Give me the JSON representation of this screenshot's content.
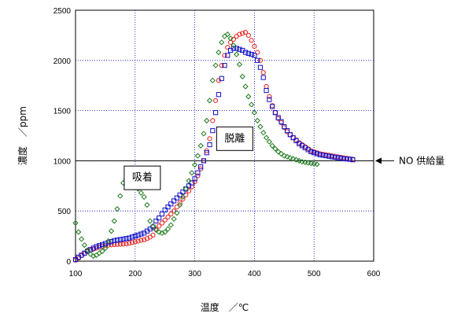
{
  "chart_data": {
    "type": "scatter",
    "xlabel": "温度　／℃",
    "ylabel": "濃度　／ppm",
    "xlim": [
      100,
      600
    ],
    "ylim": [
      0,
      2500
    ],
    "xticks": [
      100,
      200,
      300,
      400,
      500,
      600
    ],
    "yticks": [
      0,
      500,
      1000,
      1500,
      2000,
      2500
    ],
    "grid": true,
    "colors": {
      "red": "#e8201c",
      "blue": "#1010c8",
      "green": "#1e7a1e"
    },
    "reference_line": {
      "y": 1000,
      "label": "NO 供給量"
    },
    "annotations": [
      {
        "text": "吸着",
        "x": 212,
        "y": 830
      },
      {
        "text": "脱離",
        "x": 367,
        "y": 1220
      }
    ],
    "series": [
      {
        "marker": "circle",
        "color": "#e8201c",
        "x": [
          100,
          105,
          110,
          115,
          120,
          125,
          130,
          135,
          140,
          145,
          150,
          155,
          160,
          165,
          170,
          175,
          180,
          185,
          190,
          195,
          200,
          205,
          210,
          215,
          220,
          225,
          230,
          235,
          240,
          245,
          250,
          255,
          260,
          265,
          270,
          275,
          280,
          285,
          290,
          295,
          300,
          305,
          310,
          315,
          320,
          325,
          330,
          335,
          340,
          345,
          350,
          355,
          360,
          365,
          370,
          375,
          380,
          385,
          390,
          395,
          400,
          405,
          410,
          415,
          420,
          425,
          430,
          435,
          440,
          445,
          450,
          455,
          460,
          465,
          470,
          475,
          480,
          485,
          490,
          495,
          500,
          505,
          510,
          515,
          520,
          525,
          530,
          535,
          540,
          545,
          550,
          555,
          560,
          565
        ],
        "y": [
          10,
          30,
          55,
          75,
          95,
          110,
          120,
          130,
          140,
          148,
          155,
          160,
          163,
          165,
          167,
          168,
          170,
          172,
          178,
          185,
          193,
          200,
          208,
          213,
          225,
          240,
          260,
          320,
          350,
          380,
          410,
          440,
          470,
          500,
          540,
          580,
          620,
          660,
          700,
          740,
          790,
          850,
          920,
          1000,
          1100,
          1220,
          1400,
          1600,
          1800,
          1950,
          2050,
          2130,
          2180,
          2210,
          2240,
          2260,
          2270,
          2280,
          2250,
          2200,
          2140,
          2080,
          2000,
          1880,
          1740,
          1640,
          1550,
          1480,
          1420,
          1380,
          1330,
          1290,
          1260,
          1230,
          1210,
          1180,
          1160,
          1140,
          1120,
          1100,
          1090,
          1080,
          1070,
          1065,
          1060,
          1055,
          1050,
          1045,
          1040,
          1035,
          1030,
          1025,
          1020,
          1015
        ]
      },
      {
        "marker": "square",
        "color": "#1010c8",
        "x": [
          100,
          105,
          110,
          115,
          120,
          125,
          130,
          135,
          140,
          145,
          150,
          155,
          160,
          165,
          170,
          175,
          180,
          185,
          190,
          195,
          200,
          205,
          210,
          215,
          220,
          225,
          230,
          235,
          240,
          245,
          250,
          255,
          260,
          265,
          270,
          275,
          280,
          285,
          290,
          295,
          300,
          305,
          310,
          315,
          320,
          325,
          330,
          335,
          340,
          345,
          350,
          355,
          360,
          365,
          370,
          375,
          380,
          385,
          390,
          395,
          400,
          405,
          410,
          415,
          420,
          425,
          430,
          435,
          440,
          445,
          450,
          455,
          460,
          465,
          470,
          475,
          480,
          485,
          490,
          495,
          500,
          505,
          510,
          515,
          520,
          525,
          530,
          535,
          540,
          545,
          550,
          555,
          560,
          565
        ],
        "y": [
          15,
          40,
          60,
          80,
          100,
          115,
          130,
          145,
          155,
          165,
          175,
          185,
          195,
          205,
          210,
          215,
          220,
          225,
          230,
          240,
          250,
          260,
          270,
          280,
          300,
          320,
          340,
          400,
          430,
          470,
          510,
          540,
          570,
          600,
          630,
          660,
          690,
          720,
          750,
          780,
          820,
          880,
          940,
          1000,
          1080,
          1160,
          1300,
          1480,
          1660,
          1820,
          1950,
          2050,
          2100,
          2120,
          2120,
          2110,
          2100,
          2080,
          2070,
          2060,
          2050,
          2000,
          1930,
          1830,
          1700,
          1610,
          1540,
          1480,
          1430,
          1390,
          1340,
          1300,
          1260,
          1230,
          1200,
          1170,
          1150,
          1130,
          1110,
          1090,
          1080,
          1070,
          1060,
          1055,
          1050,
          1045,
          1040,
          1035,
          1030,
          1025,
          1020,
          1018,
          1015,
          1010
        ]
      },
      {
        "marker": "diamond",
        "color": "#1e7a1e",
        "x": [
          100,
          105,
          110,
          115,
          120,
          125,
          130,
          135,
          140,
          145,
          150,
          155,
          160,
          165,
          170,
          175,
          180,
          185,
          190,
          195,
          200,
          205,
          210,
          215,
          220,
          225,
          230,
          235,
          240,
          245,
          250,
          255,
          260,
          265,
          270,
          275,
          280,
          285,
          290,
          295,
          300,
          305,
          310,
          315,
          320,
          325,
          330,
          335,
          340,
          345,
          350,
          355,
          360,
          365,
          370,
          375,
          380,
          385,
          390,
          395,
          400,
          405,
          410,
          415,
          420,
          425,
          430,
          435,
          440,
          445,
          450,
          455,
          460,
          465,
          470,
          475,
          480,
          485,
          490,
          495,
          500,
          505
        ],
        "y": [
          380,
          290,
          220,
          160,
          110,
          70,
          50,
          60,
          80,
          100,
          130,
          200,
          300,
          400,
          520,
          650,
          780,
          820,
          830,
          800,
          760,
          720,
          680,
          640,
          560,
          400,
          350,
          310,
          290,
          280,
          290,
          320,
          360,
          420,
          480,
          560,
          640,
          720,
          800,
          880,
          960,
          1050,
          1150,
          1270,
          1400,
          1600,
          1800,
          1950,
          2080,
          2180,
          2240,
          2260,
          2220,
          2150,
          2060,
          1960,
          1840,
          1740,
          1640,
          1560,
          1480,
          1400,
          1340,
          1280,
          1230,
          1190,
          1150,
          1120,
          1090,
          1070,
          1050,
          1040,
          1030,
          1020,
          1010,
          1000,
          990,
          985,
          980,
          975,
          970,
          965
        ]
      }
    ]
  }
}
